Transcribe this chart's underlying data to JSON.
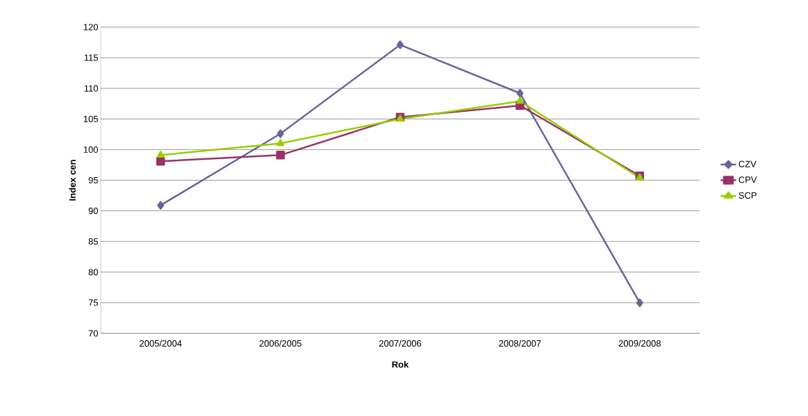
{
  "chart_data": {
    "type": "line",
    "xlabel": "Rok",
    "ylabel": "Index cen",
    "categories": [
      "2005/2004",
      "2006/2005",
      "2007/2006",
      "2008/2007",
      "2009/2008"
    ],
    "series": [
      {
        "name": "CZV",
        "color": "#666699",
        "marker": "diamond",
        "values": [
          90.9,
          102.6,
          117.1,
          109.2,
          75.0
        ]
      },
      {
        "name": "CPV",
        "color": "#993366",
        "marker": "square",
        "values": [
          98.1,
          99.1,
          105.3,
          107.2,
          95.7
        ]
      },
      {
        "name": "SCP",
        "color": "#99cc00",
        "marker": "triangle",
        "values": [
          99.1,
          101.0,
          105.0,
          107.9,
          95.4
        ]
      }
    ],
    "ylim": [
      70,
      120
    ],
    "yticks": [
      70,
      75,
      80,
      85,
      90,
      95,
      100,
      105,
      110,
      115,
      120
    ],
    "grid": "y",
    "legend": "right"
  }
}
